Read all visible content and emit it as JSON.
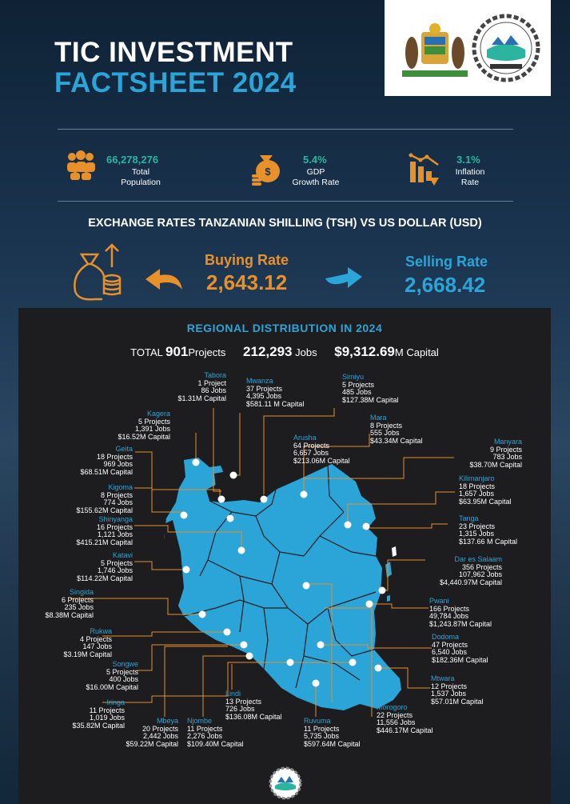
{
  "header": {
    "title_line1": "TIC INVESTMENT",
    "title_line2": "FACTSHEET 2024"
  },
  "stats": [
    {
      "icon": "population-icon",
      "value": "66,278,276",
      "label_line1": "Total",
      "label_line2": "Population"
    },
    {
      "icon": "money-bag-icon",
      "value": "5.4%",
      "label_line1": "GDP",
      "label_line2": "Growth Rate"
    },
    {
      "icon": "inflation-chart-icon",
      "value": "3.1%",
      "label_line1": "Inflation",
      "label_line2": "Rate"
    }
  ],
  "exchange": {
    "title": "EXCHANGE RATES TANZANIAN SHILLING (TSH) VS US DOLLAR (USD)",
    "buying_label": "Buying Rate",
    "buying_value": "2,643.12",
    "selling_label": "Selling Rate",
    "selling_value": "2,668.42"
  },
  "regional": {
    "title": "REGIONAL DISTRIBUTION IN 2024",
    "total_prefix": "TOTAL",
    "total_projects": "901",
    "projects_word": "Projects",
    "total_jobs": "212,293",
    "jobs_word": "Jobs",
    "total_capital": "$9,312.69",
    "capital_word": "M Capital"
  },
  "regions": [
    {
      "name": "Tabora",
      "projects": "1 Project",
      "jobs": "86 Jobs",
      "capital": "$1.31M Capital"
    },
    {
      "name": "Mwanza",
      "projects": "37 Projects",
      "jobs": "4,395 Jobs",
      "capital": "$581.11 M Capital"
    },
    {
      "name": "Simiyu",
      "projects": "5 Projects",
      "jobs": "485 Jobs",
      "capital": "$127.38M Capital"
    },
    {
      "name": "Kagera",
      "projects": "5 Projects",
      "jobs": "1,391 Jobs",
      "capital": "$16.52M Capital"
    },
    {
      "name": "Mara",
      "projects": "8 Projects",
      "jobs": "555 Jobs",
      "capital": "$43.34M Capital"
    },
    {
      "name": "Geita",
      "projects": "18 Projects",
      "jobs": "969 Jobs",
      "capital": "$68.51M Capital"
    },
    {
      "name": "Arusha",
      "projects": "64 Projects",
      "jobs": "6,657 Jobs",
      "capital": "$213.06M Capital"
    },
    {
      "name": "Manyara",
      "projects": "9 Projects",
      "jobs": "783 Jobs",
      "capital": "$38.70M Capital"
    },
    {
      "name": "Kigoma",
      "projects": "8 Projects",
      "jobs": "774 Jobs",
      "capital": "$155.62M Capital"
    },
    {
      "name": "Kilimanjaro",
      "projects": "18 Projects",
      "jobs": "1,657 Jobs",
      "capital": "$63.95M Capital"
    },
    {
      "name": "Shinyanga",
      "projects": "16 Projects",
      "jobs": "1,121 Jobs",
      "capital": "$415.21M Capital"
    },
    {
      "name": "Tanga",
      "projects": "23 Projects",
      "jobs": "1,315 Jobs",
      "capital": "$137.66 M Capital"
    },
    {
      "name": "Katavi",
      "projects": "5 Projects",
      "jobs": "1,746 Jobs",
      "capital": "$114.22M Capital"
    },
    {
      "name": "Dar es Salaam",
      "projects": "356 Projects",
      "jobs": "107,962 Jobs",
      "capital": "$4,440.97M Capital"
    },
    {
      "name": "Singida",
      "projects": "6 Projects",
      "jobs": "235 Jobs",
      "capital": "$8.38M Capital"
    },
    {
      "name": "Pwani",
      "projects": "166 Projects",
      "jobs": "49,784 Jobs",
      "capital": "$1,243.87M Capital"
    },
    {
      "name": "Rukwa",
      "projects": "4 Projects",
      "jobs": "147 Jobs",
      "capital": "$3.19M Capital"
    },
    {
      "name": "Dodoma",
      "projects": "47 Projects",
      "jobs": "6,540 Jobs",
      "capital": "$182.36M Capital"
    },
    {
      "name": "Songwe",
      "projects": "5 Projects",
      "jobs": "400 Jobs",
      "capital": "$16.00M Capital"
    },
    {
      "name": "Mtwara",
      "projects": "12 Projects",
      "jobs": "1,537 Jobs",
      "capital": "$57.01M Capital"
    },
    {
      "name": "Iringa",
      "projects": "11 Projects",
      "jobs": "1,019 Jobs",
      "capital": "$35.82M Capital"
    },
    {
      "name": "Lindi",
      "projects": "13 Projects",
      "jobs": "726 Jobs",
      "capital": "$136.08M Capital"
    },
    {
      "name": "Mbeya",
      "projects": "20 Projects",
      "jobs": "2,442 Jobs",
      "capital": "$59.22M Capital"
    },
    {
      "name": "Njombe",
      "projects": "11 Projects",
      "jobs": "2,276 Jobs",
      "capital": "$109.40M Capital"
    },
    {
      "name": "Ruvuma",
      "projects": "11 Projects",
      "jobs": "5,735 Jobs",
      "capital": "$597.64M Capital"
    },
    {
      "name": "Morogoro",
      "projects": "22 Projects",
      "jobs": "11,556 Jobs",
      "capital": "$446.17M Capital"
    }
  ],
  "colors": {
    "accent_blue": "#2ba4d8",
    "accent_orange": "#e8902a",
    "accent_teal": "#2bb5a0",
    "map_fill": "#2ba4d8",
    "panel_bg": "#1d1d1f"
  }
}
